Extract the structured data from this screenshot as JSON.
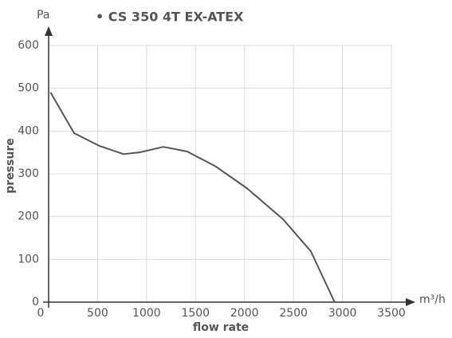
{
  "chart_data": {
    "type": "line",
    "title": "• CS 350 4T EX-ATEX",
    "x_label": "flow rate",
    "y_label": "pressure",
    "x_unit": "m³/h",
    "y_unit": "Pa",
    "series": [
      {
        "name": "CS 350 4T EX-ATEX",
        "color": "#555555",
        "x": [
          20,
          260,
          520,
          765,
          928,
          1172,
          1416,
          1700,
          2026,
          2392,
          2677,
          2920
        ],
        "values": [
          490,
          395,
          365,
          346,
          350,
          363,
          352,
          318,
          266,
          194,
          119,
          0
        ]
      }
    ],
    "xlim": [
      0,
      3500
    ],
    "xticks": [
      0,
      500,
      1000,
      1500,
      2000,
      2500,
      3000,
      3500
    ],
    "ylim": [
      0,
      600
    ],
    "yticks": [
      0,
      100,
      200,
      300,
      400,
      500,
      600
    ],
    "grid": true
  }
}
